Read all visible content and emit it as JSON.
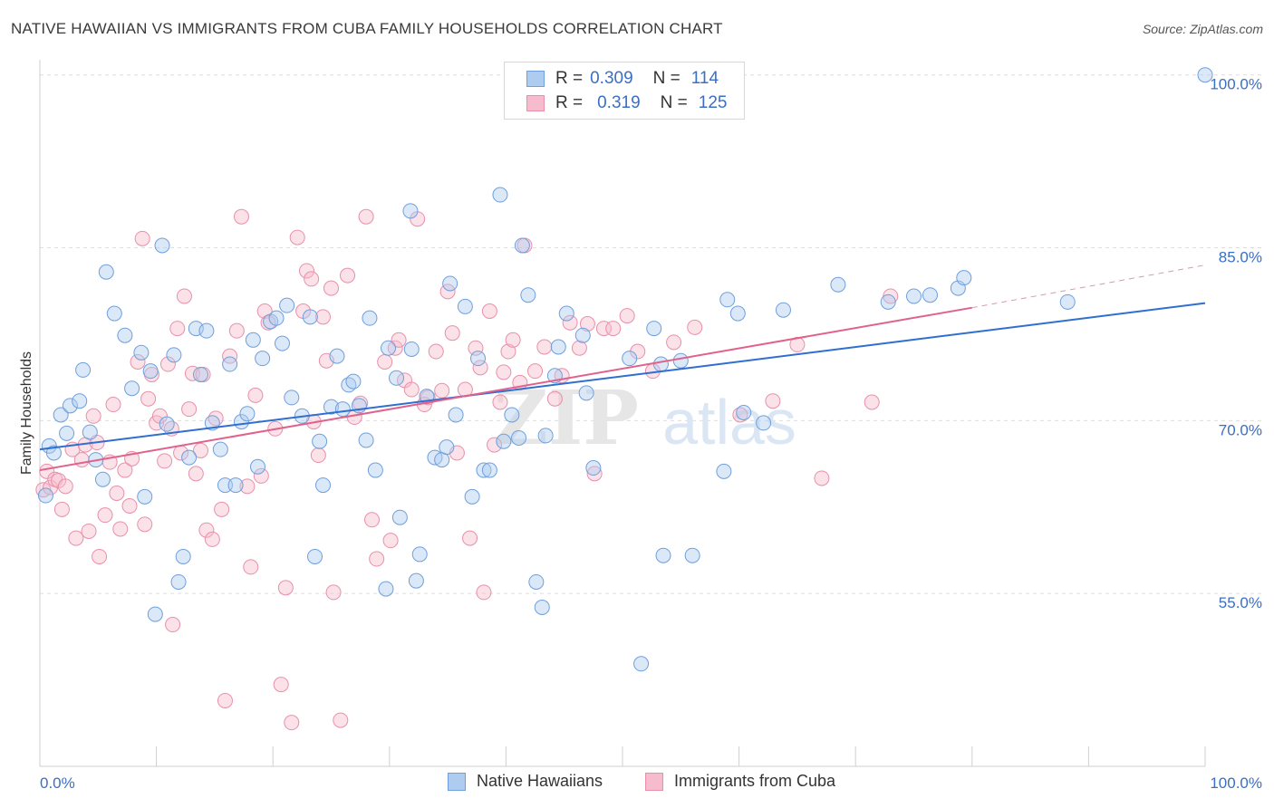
{
  "title": "NATIVE HAWAIIAN VS IMMIGRANTS FROM CUBA FAMILY HOUSEHOLDS CORRELATION CHART",
  "source": "Source: ZipAtlas.com",
  "watermark": {
    "zip": "ZIP",
    "atlas": "atlas"
  },
  "colors": {
    "blue_fill": "#aecbf0",
    "blue_stroke": "#6f9fdc",
    "blue_line": "#2f6fd0",
    "pink_fill": "#f6bccd",
    "pink_stroke": "#e890aa",
    "pink_line": "#e0628c",
    "axis_label": "#3a6fc4",
    "grid": "#dddddd"
  },
  "legend": {
    "rows": [
      {
        "r_label": "R =",
        "r_value": "0.309",
        "n_label": "N =",
        "n_value": "114"
      },
      {
        "r_label": "R =",
        "r_value": "0.319",
        "n_label": "N =",
        "n_value": "125"
      }
    ]
  },
  "bottom_legend": {
    "series1": "Native Hawaiians",
    "series2": "Immigrants from Cuba"
  },
  "chart_data": {
    "type": "scatter",
    "title": "NATIVE HAWAIIAN VS IMMIGRANTS FROM CUBA FAMILY HOUSEHOLDS CORRELATION CHART",
    "xlabel": "",
    "ylabel": "Family Households",
    "xlim": [
      0,
      100
    ],
    "ylim": [
      40,
      101
    ],
    "x_tick_labels": [
      "0.0%",
      "100.0%"
    ],
    "y_ticks": [
      55,
      70,
      85,
      100
    ],
    "y_tick_labels": [
      "55.0%",
      "70.0%",
      "85.0%",
      "100.0%"
    ],
    "grid": true,
    "legend_position": "top-center",
    "series": [
      {
        "name": "Native Hawaiians",
        "R": 0.309,
        "N": 114,
        "trend": {
          "x": [
            0,
            100
          ],
          "y": [
            67.5,
            80.2
          ]
        },
        "points": [
          [
            0.5,
            63.5
          ],
          [
            0.8,
            67.8
          ],
          [
            1.2,
            67.2
          ],
          [
            1.8,
            70.5
          ],
          [
            2.3,
            68.9
          ],
          [
            2.6,
            71.3
          ],
          [
            3.4,
            71.7
          ],
          [
            3.7,
            74.4
          ],
          [
            4.3,
            69.0
          ],
          [
            4.8,
            66.6
          ],
          [
            5.4,
            64.9
          ],
          [
            5.7,
            82.9
          ],
          [
            6.4,
            79.3
          ],
          [
            7.3,
            77.4
          ],
          [
            7.9,
            72.8
          ],
          [
            8.7,
            75.9
          ],
          [
            9.0,
            63.4
          ],
          [
            9.5,
            74.3
          ],
          [
            9.9,
            53.2
          ],
          [
            10.5,
            85.2
          ],
          [
            10.9,
            69.7
          ],
          [
            11.5,
            75.7
          ],
          [
            11.9,
            56.0
          ],
          [
            12.3,
            58.2
          ],
          [
            12.8,
            66.8
          ],
          [
            13.4,
            78.0
          ],
          [
            13.8,
            74.0
          ],
          [
            14.3,
            77.8
          ],
          [
            14.8,
            69.8
          ],
          [
            15.5,
            67.5
          ],
          [
            15.9,
            64.4
          ],
          [
            16.3,
            74.9
          ],
          [
            16.8,
            64.4
          ],
          [
            17.3,
            69.9
          ],
          [
            17.8,
            70.6
          ],
          [
            18.3,
            77.0
          ],
          [
            18.7,
            66.0
          ],
          [
            19.1,
            75.4
          ],
          [
            19.8,
            78.6
          ],
          [
            20.3,
            78.9
          ],
          [
            20.8,
            76.7
          ],
          [
            21.2,
            80.0
          ],
          [
            21.6,
            72.0
          ],
          [
            22.5,
            70.4
          ],
          [
            23.2,
            79.0
          ],
          [
            23.6,
            58.2
          ],
          [
            24.0,
            68.2
          ],
          [
            24.3,
            64.4
          ],
          [
            25.0,
            71.2
          ],
          [
            25.5,
            75.6
          ],
          [
            26.0,
            71.0
          ],
          [
            26.5,
            73.1
          ],
          [
            26.9,
            73.4
          ],
          [
            27.4,
            71.3
          ],
          [
            28.0,
            68.3
          ],
          [
            28.3,
            78.9
          ],
          [
            28.8,
            65.7
          ],
          [
            29.7,
            55.4
          ],
          [
            29.9,
            76.3
          ],
          [
            30.6,
            73.7
          ],
          [
            30.9,
            61.6
          ],
          [
            31.8,
            88.2
          ],
          [
            31.9,
            76.2
          ],
          [
            32.3,
            56.1
          ],
          [
            32.6,
            58.4
          ],
          [
            33.2,
            72.1
          ],
          [
            33.9,
            66.8
          ],
          [
            34.5,
            66.6
          ],
          [
            34.9,
            67.7
          ],
          [
            35.2,
            81.9
          ],
          [
            35.7,
            70.5
          ],
          [
            36.5,
            79.9
          ],
          [
            37.1,
            63.4
          ],
          [
            37.6,
            75.4
          ],
          [
            38.1,
            65.7
          ],
          [
            38.6,
            65.7
          ],
          [
            39.5,
            89.6
          ],
          [
            39.8,
            68.2
          ],
          [
            40.5,
            70.5
          ],
          [
            41.1,
            68.5
          ],
          [
            41.4,
            85.2
          ],
          [
            41.9,
            80.9
          ],
          [
            42.6,
            56.0
          ],
          [
            43.1,
            53.8
          ],
          [
            43.4,
            68.7
          ],
          [
            44.2,
            73.9
          ],
          [
            44.5,
            76.4
          ],
          [
            45.2,
            79.3
          ],
          [
            46.6,
            77.4
          ],
          [
            46.9,
            72.4
          ],
          [
            47.5,
            65.9
          ],
          [
            50.6,
            75.4
          ],
          [
            51.6,
            48.9
          ],
          [
            52.7,
            78.0
          ],
          [
            53.5,
            58.3
          ],
          [
            53.3,
            74.9
          ],
          [
            55.0,
            75.2
          ],
          [
            56.0,
            58.3
          ],
          [
            58.7,
            65.6
          ],
          [
            59.0,
            80.5
          ],
          [
            59.9,
            79.3
          ],
          [
            60.4,
            70.7
          ],
          [
            62.1,
            69.8
          ],
          [
            63.8,
            79.6
          ],
          [
            68.5,
            81.8
          ],
          [
            72.8,
            80.3
          ],
          [
            75.0,
            80.8
          ],
          [
            76.4,
            80.9
          ],
          [
            78.8,
            81.5
          ],
          [
            79.3,
            82.4
          ],
          [
            88.2,
            80.3
          ],
          [
            100.0,
            100.0
          ]
        ]
      },
      {
        "name": "Immigrants from Cuba",
        "R": 0.319,
        "N": 125,
        "trend": {
          "x": [
            0,
            80
          ],
          "y": [
            65.7,
            79.8
          ],
          "dashed_extension": {
            "x": [
              80,
              100
            ],
            "y": [
              79.8,
              83.5
            ]
          }
        },
        "points": [
          [
            0.3,
            64.0
          ],
          [
            0.6,
            65.6
          ],
          [
            0.9,
            64.2
          ],
          [
            1.3,
            64.9
          ],
          [
            1.6,
            64.8
          ],
          [
            1.9,
            62.3
          ],
          [
            2.2,
            64.3
          ],
          [
            2.8,
            67.5
          ],
          [
            3.1,
            59.8
          ],
          [
            3.6,
            66.6
          ],
          [
            3.9,
            67.9
          ],
          [
            4.2,
            60.4
          ],
          [
            4.6,
            70.4
          ],
          [
            4.9,
            68.1
          ],
          [
            5.1,
            58.2
          ],
          [
            5.6,
            61.8
          ],
          [
            6.0,
            66.4
          ],
          [
            6.3,
            71.4
          ],
          [
            6.6,
            63.7
          ],
          [
            6.9,
            60.6
          ],
          [
            7.3,
            65.7
          ],
          [
            7.7,
            62.6
          ],
          [
            7.9,
            66.7
          ],
          [
            8.4,
            75.1
          ],
          [
            8.8,
            85.8
          ],
          [
            9.0,
            61.0
          ],
          [
            9.3,
            71.9
          ],
          [
            9.6,
            74.0
          ],
          [
            10.0,
            69.8
          ],
          [
            10.3,
            70.4
          ],
          [
            10.7,
            66.5
          ],
          [
            11.0,
            74.9
          ],
          [
            11.3,
            69.3
          ],
          [
            11.4,
            52.3
          ],
          [
            11.8,
            78.0
          ],
          [
            12.1,
            67.2
          ],
          [
            12.4,
            80.8
          ],
          [
            12.8,
            71.0
          ],
          [
            13.1,
            74.1
          ],
          [
            13.4,
            65.4
          ],
          [
            13.8,
            67.4
          ],
          [
            14.0,
            74.0
          ],
          [
            14.3,
            60.5
          ],
          [
            14.8,
            59.7
          ],
          [
            15.1,
            70.2
          ],
          [
            15.6,
            62.3
          ],
          [
            15.9,
            45.7
          ],
          [
            16.3,
            75.6
          ],
          [
            16.9,
            77.8
          ],
          [
            17.3,
            87.7
          ],
          [
            17.8,
            64.3
          ],
          [
            18.1,
            57.3
          ],
          [
            18.5,
            72.2
          ],
          [
            19.0,
            65.2
          ],
          [
            19.3,
            79.5
          ],
          [
            19.6,
            78.5
          ],
          [
            20.2,
            69.3
          ],
          [
            20.7,
            47.1
          ],
          [
            21.1,
            55.5
          ],
          [
            21.6,
            43.8
          ],
          [
            22.1,
            85.9
          ],
          [
            22.6,
            79.5
          ],
          [
            22.9,
            83.0
          ],
          [
            23.3,
            82.3
          ],
          [
            23.5,
            69.9
          ],
          [
            23.9,
            67.0
          ],
          [
            24.3,
            79.0
          ],
          [
            24.6,
            75.2
          ],
          [
            25.0,
            81.5
          ],
          [
            25.2,
            55.1
          ],
          [
            25.8,
            44.0
          ],
          [
            26.4,
            82.6
          ],
          [
            27.0,
            70.3
          ],
          [
            27.5,
            71.5
          ],
          [
            28.0,
            87.7
          ],
          [
            28.5,
            61.4
          ],
          [
            28.9,
            58.0
          ],
          [
            29.6,
            75.1
          ],
          [
            30.1,
            59.6
          ],
          [
            30.5,
            76.3
          ],
          [
            30.8,
            77.0
          ],
          [
            31.3,
            73.5
          ],
          [
            31.9,
            72.7
          ],
          [
            32.4,
            87.5
          ],
          [
            33.0,
            71.4
          ],
          [
            33.3,
            72.0
          ],
          [
            34.0,
            76.0
          ],
          [
            34.5,
            72.6
          ],
          [
            35.0,
            81.2
          ],
          [
            35.4,
            77.6
          ],
          [
            35.8,
            67.2
          ],
          [
            36.5,
            72.7
          ],
          [
            36.9,
            59.8
          ],
          [
            37.4,
            76.3
          ],
          [
            37.8,
            74.6
          ],
          [
            38.1,
            55.1
          ],
          [
            38.6,
            79.5
          ],
          [
            39.0,
            67.9
          ],
          [
            39.5,
            71.6
          ],
          [
            39.8,
            74.2
          ],
          [
            40.2,
            76.0
          ],
          [
            40.6,
            77.0
          ],
          [
            41.2,
            73.3
          ],
          [
            41.6,
            85.2
          ],
          [
            42.5,
            74.3
          ],
          [
            43.3,
            76.4
          ],
          [
            44.2,
            71.9
          ],
          [
            44.8,
            73.9
          ],
          [
            45.5,
            78.5
          ],
          [
            46.3,
            76.3
          ],
          [
            47.0,
            78.4
          ],
          [
            47.6,
            65.4
          ],
          [
            48.4,
            78.0
          ],
          [
            49.2,
            78.0
          ],
          [
            50.4,
            79.1
          ],
          [
            51.3,
            76.0
          ],
          [
            52.6,
            74.3
          ],
          [
            54.4,
            76.8
          ],
          [
            56.2,
            78.1
          ],
          [
            60.1,
            70.5
          ],
          [
            62.9,
            71.7
          ],
          [
            65.0,
            76.6
          ],
          [
            67.1,
            65.0
          ],
          [
            71.4,
            71.6
          ],
          [
            73.0,
            80.8
          ]
        ]
      }
    ]
  }
}
